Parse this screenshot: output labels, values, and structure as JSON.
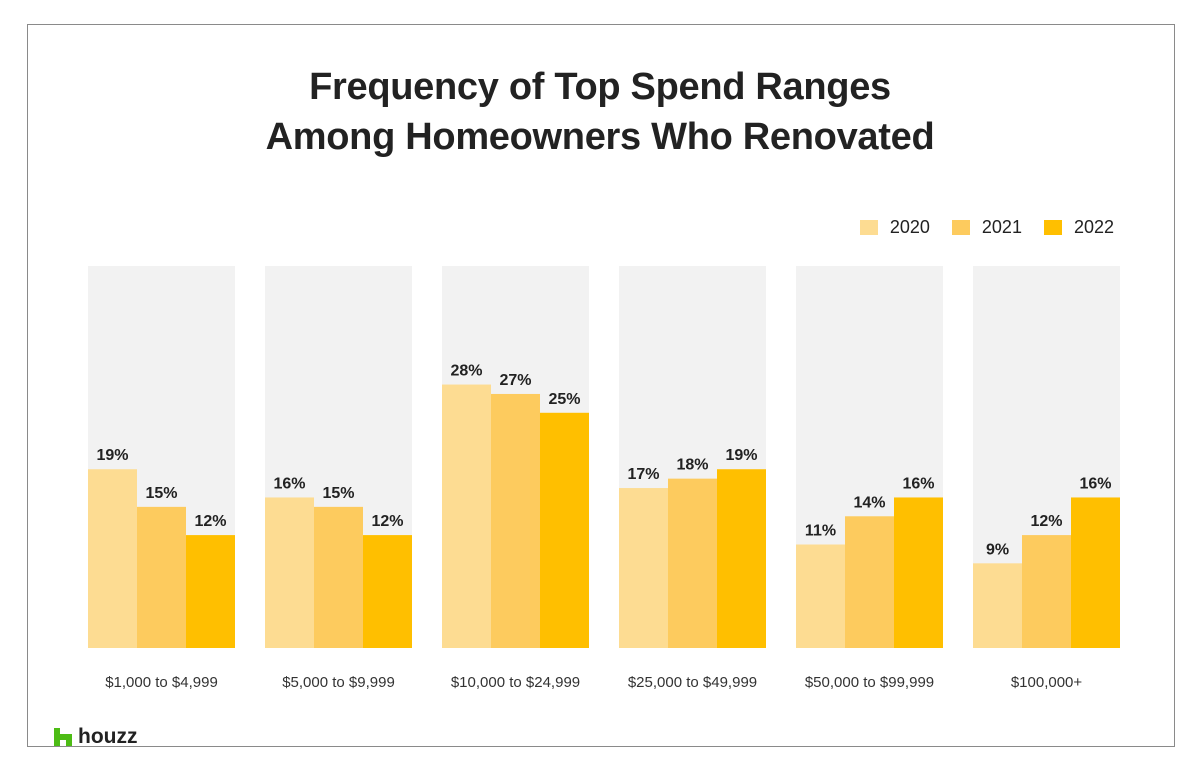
{
  "chart_data": {
    "type": "bar",
    "title": "Frequency of Top Spend Ranges Among Homeowners Who Renovated",
    "title_lines": [
      "Frequency of Top Spend Ranges",
      "Among Homeowners Who Renovated"
    ],
    "categories": [
      "$1,000 to $4,999",
      "$5,000 to $9,999",
      "$10,000 to $24,999",
      "$25,000 to $49,999",
      "$50,000 to $99,999",
      "$100,000+"
    ],
    "series": [
      {
        "name": "2020",
        "color": "#FDDC92",
        "values": [
          19,
          16,
          28,
          17,
          11,
          9
        ]
      },
      {
        "name": "2021",
        "color": "#FDCB5E",
        "values": [
          15,
          15,
          27,
          18,
          14,
          12
        ]
      },
      {
        "name": "2022",
        "color": "#FFBF00",
        "values": [
          12,
          12,
          25,
          19,
          16,
          16
        ]
      }
    ],
    "value_suffix": "%",
    "ylim": [
      0,
      40.6
    ],
    "legend_position": "top-right",
    "grid": false
  },
  "brand": {
    "logo_text": "houzz",
    "color": "#4DBC15"
  }
}
